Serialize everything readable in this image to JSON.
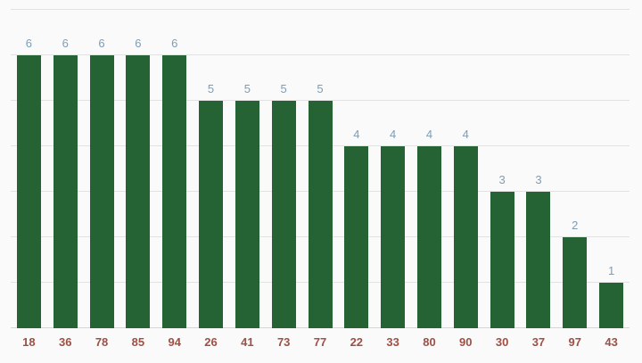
{
  "chart_data": {
    "type": "bar",
    "categories": [
      "18",
      "36",
      "78",
      "85",
      "94",
      "26",
      "41",
      "73",
      "77",
      "22",
      "33",
      "80",
      "90",
      "30",
      "37",
      "97",
      "43"
    ],
    "values": [
      6,
      6,
      6,
      6,
      6,
      5,
      5,
      5,
      5,
      4,
      4,
      4,
      4,
      3,
      3,
      2,
      1
    ],
    "title": "",
    "xlabel": "",
    "ylabel": "",
    "ylim": [
      0,
      7
    ],
    "gridline_values": [
      0,
      1,
      2,
      3,
      4,
      5,
      6,
      7
    ],
    "grid": "horizontal only",
    "legend": "none",
    "y_axis_tick_labels": "none",
    "value_labels_position": "above bars",
    "colors": {
      "background": "#fafafa",
      "bar": "#266334",
      "value_label": "#7e9db5",
      "category_label": "#9e5044",
      "gridline": "#e2e2e2",
      "axis_line": "#d6d6d6"
    }
  }
}
